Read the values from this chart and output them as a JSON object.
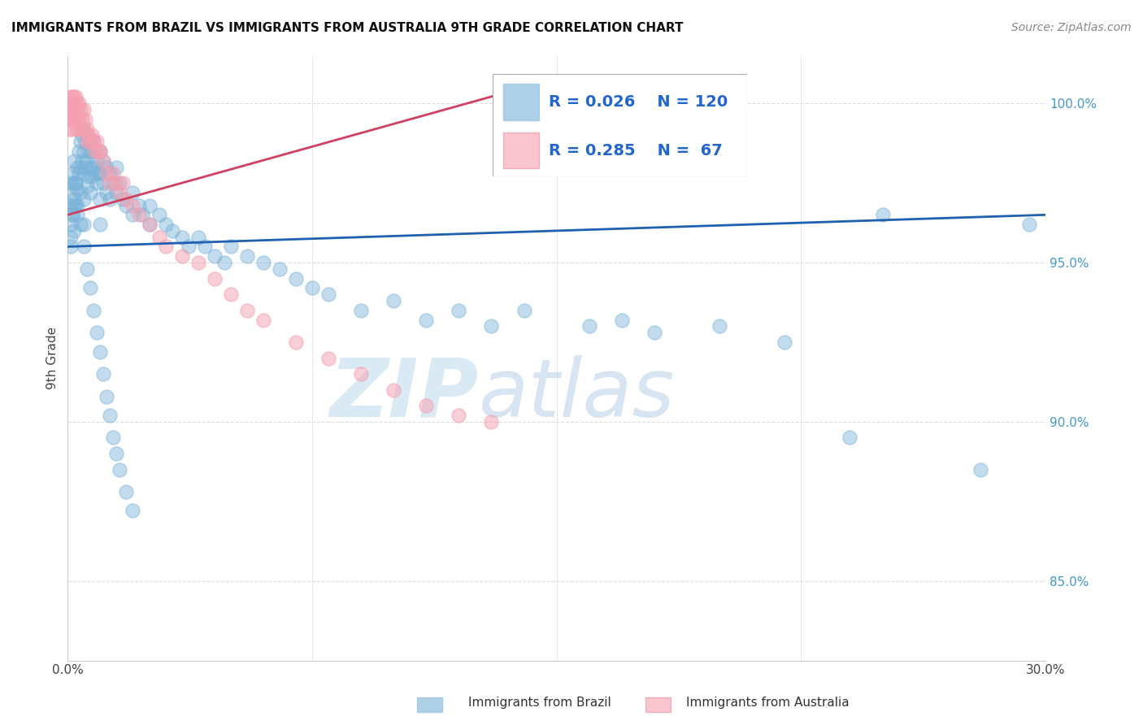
{
  "title": "IMMIGRANTS FROM BRAZIL VS IMMIGRANTS FROM AUSTRALIA 9TH GRADE CORRELATION CHART",
  "source": "Source: ZipAtlas.com",
  "ylabel": "9th Grade",
  "xlim": [
    0.0,
    30.0
  ],
  "ylim": [
    82.5,
    101.5
  ],
  "brazil_color": "#7ab3d9",
  "australia_color": "#f5a0b0",
  "brazil_R": 0.026,
  "brazil_N": 120,
  "australia_R": 0.285,
  "australia_N": 67,
  "trend_blue": "#2060b0",
  "trend_pink": "#d04060",
  "watermark_zip": "ZIP",
  "watermark_atlas": "atlas",
  "legend_brazil": "Immigrants from Brazil",
  "legend_australia": "Immigrants from Australia",
  "brazil_x": [
    0.1,
    0.1,
    0.1,
    0.1,
    0.15,
    0.15,
    0.15,
    0.2,
    0.2,
    0.2,
    0.2,
    0.25,
    0.25,
    0.3,
    0.3,
    0.3,
    0.35,
    0.35,
    0.4,
    0.4,
    0.4,
    0.45,
    0.45,
    0.5,
    0.5,
    0.5,
    0.5,
    0.5,
    0.55,
    0.55,
    0.6,
    0.6,
    0.6,
    0.65,
    0.65,
    0.7,
    0.7,
    0.7,
    0.75,
    0.75,
    0.8,
    0.8,
    0.85,
    0.85,
    0.9,
    0.9,
    0.95,
    1.0,
    1.0,
    1.0,
    1.0,
    1.1,
    1.1,
    1.2,
    1.2,
    1.3,
    1.3,
    1.4,
    1.5,
    1.5,
    1.6,
    1.7,
    1.8,
    2.0,
    2.0,
    2.2,
    2.3,
    2.5,
    2.5,
    2.8,
    3.0,
    3.2,
    3.5,
    3.7,
    4.0,
    4.2,
    4.5,
    4.8,
    5.0,
    5.5,
    6.0,
    6.5,
    7.0,
    7.5,
    8.0,
    9.0,
    10.0,
    11.0,
    12.0,
    13.0,
    14.0,
    16.0,
    17.0,
    18.0,
    20.0,
    22.0,
    24.0,
    25.0,
    28.0,
    29.5,
    0.1,
    0.15,
    0.2,
    0.25,
    0.3,
    0.4,
    0.5,
    0.6,
    0.7,
    0.8,
    0.9,
    1.0,
    1.1,
    1.2,
    1.3,
    1.4,
    1.5,
    1.6,
    1.8,
    2.0
  ],
  "brazil_y": [
    97.5,
    96.8,
    96.2,
    95.5,
    97.8,
    97.2,
    96.5,
    98.2,
    97.5,
    96.8,
    96.0,
    97.5,
    96.8,
    98.0,
    97.3,
    96.5,
    98.5,
    97.8,
    98.8,
    98.0,
    97.2,
    99.0,
    98.2,
    99.2,
    98.5,
    97.8,
    97.0,
    96.2,
    98.8,
    98.0,
    99.0,
    98.2,
    97.4,
    98.5,
    97.7,
    98.8,
    98.0,
    97.2,
    98.5,
    97.7,
    98.8,
    98.0,
    98.5,
    97.8,
    98.2,
    97.5,
    97.8,
    98.5,
    97.8,
    97.0,
    96.2,
    98.2,
    97.5,
    98.0,
    97.2,
    97.8,
    97.0,
    97.5,
    98.0,
    97.2,
    97.5,
    97.0,
    96.8,
    97.2,
    96.5,
    96.8,
    96.5,
    96.8,
    96.2,
    96.5,
    96.2,
    96.0,
    95.8,
    95.5,
    95.8,
    95.5,
    95.2,
    95.0,
    95.5,
    95.2,
    95.0,
    94.8,
    94.5,
    94.2,
    94.0,
    93.5,
    93.8,
    93.2,
    93.5,
    93.0,
    93.5,
    93.0,
    93.2,
    92.8,
    93.0,
    92.5,
    89.5,
    96.5,
    88.5,
    96.2,
    95.8,
    96.5,
    97.0,
    97.5,
    96.8,
    96.2,
    95.5,
    94.8,
    94.2,
    93.5,
    92.8,
    92.2,
    91.5,
    90.8,
    90.2,
    89.5,
    89.0,
    88.5,
    87.8,
    87.2
  ],
  "australia_x": [
    0.05,
    0.08,
    0.08,
    0.1,
    0.1,
    0.1,
    0.12,
    0.12,
    0.15,
    0.15,
    0.15,
    0.18,
    0.18,
    0.2,
    0.2,
    0.22,
    0.22,
    0.25,
    0.25,
    0.28,
    0.28,
    0.3,
    0.3,
    0.35,
    0.35,
    0.4,
    0.4,
    0.45,
    0.5,
    0.5,
    0.55,
    0.6,
    0.6,
    0.65,
    0.7,
    0.75,
    0.8,
    0.85,
    0.9,
    0.95,
    1.0,
    1.1,
    1.2,
    1.3,
    1.4,
    1.5,
    1.6,
    1.7,
    1.8,
    2.0,
    2.2,
    2.5,
    2.8,
    3.0,
    3.5,
    4.0,
    4.5,
    5.0,
    5.5,
    6.0,
    7.0,
    8.0,
    9.0,
    10.0,
    11.0,
    12.0,
    13.0
  ],
  "australia_y": [
    99.2,
    99.8,
    99.5,
    100.2,
    99.8,
    99.5,
    100.0,
    99.5,
    100.2,
    99.8,
    99.2,
    100.0,
    99.5,
    100.2,
    99.8,
    100.0,
    99.5,
    100.2,
    99.8,
    100.0,
    99.5,
    99.8,
    99.2,
    100.0,
    99.5,
    99.8,
    99.2,
    99.5,
    99.8,
    99.2,
    99.5,
    99.2,
    98.8,
    99.0,
    98.8,
    99.0,
    98.8,
    98.5,
    98.8,
    98.5,
    98.5,
    98.2,
    97.8,
    97.5,
    97.8,
    97.5,
    97.2,
    97.5,
    97.0,
    96.8,
    96.5,
    96.2,
    95.8,
    95.5,
    95.2,
    95.0,
    94.5,
    94.0,
    93.5,
    93.2,
    92.5,
    92.0,
    91.5,
    91.0,
    90.5,
    90.2,
    90.0
  ]
}
